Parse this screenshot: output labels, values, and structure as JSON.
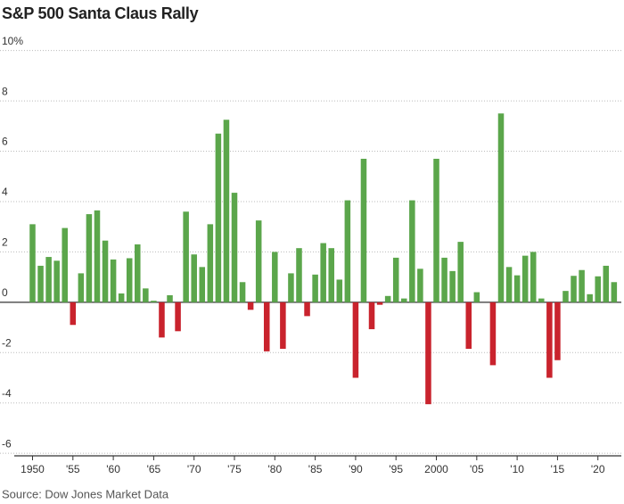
{
  "chart_data": {
    "type": "bar",
    "title": "S&P 500 Santa Claus Rally",
    "source": "Source: Dow Jones Market Data",
    "x": [
      1950,
      1951,
      1952,
      1953,
      1954,
      1955,
      1956,
      1957,
      1958,
      1959,
      1960,
      1961,
      1962,
      1963,
      1964,
      1965,
      1966,
      1967,
      1968,
      1969,
      1970,
      1971,
      1972,
      1973,
      1974,
      1975,
      1976,
      1977,
      1978,
      1979,
      1980,
      1981,
      1982,
      1983,
      1984,
      1985,
      1986,
      1987,
      1988,
      1989,
      1990,
      1991,
      1992,
      1993,
      1994,
      1995,
      1996,
      1997,
      1998,
      1999,
      2000,
      2001,
      2002,
      2003,
      2004,
      2005,
      2006,
      2007,
      2008,
      2009,
      2010,
      2011,
      2012,
      2013,
      2014,
      2015,
      2016,
      2017,
      2018,
      2019,
      2020,
      2021,
      2022
    ],
    "values": [
      3.1,
      1.45,
      1.8,
      1.65,
      2.95,
      -0.9,
      1.15,
      3.5,
      3.65,
      2.45,
      1.7,
      0.35,
      1.75,
      2.3,
      0.55,
      0.06,
      -1.4,
      0.28,
      -1.15,
      3.6,
      1.9,
      1.4,
      3.1,
      6.7,
      7.25,
      4.35,
      0.8,
      -0.3,
      3.25,
      -1.95,
      2.0,
      -1.85,
      1.15,
      2.15,
      -0.55,
      1.1,
      2.35,
      2.15,
      0.9,
      4.05,
      -3.0,
      5.7,
      -1.07,
      -0.1,
      0.25,
      1.77,
      0.15,
      4.05,
      1.33,
      -4.05,
      5.7,
      1.77,
      1.24,
      2.4,
      -1.85,
      0.4,
      0,
      -2.5,
      7.5,
      1.4,
      1.07,
      1.85,
      2.0,
      0.15,
      -3.0,
      -2.3,
      0.45,
      1.05,
      1.28,
      0.32,
      1.03,
      1.45,
      0.8
    ],
    "positive_color": "#5ba64b",
    "negative_color": "#c9232d",
    "xlim": [
      1948.4,
      2022.9
    ],
    "xticks": [
      1950,
      {
        "value": 1955,
        "label": "'55"
      },
      {
        "value": 1960,
        "label": "'60"
      },
      {
        "value": 1965,
        "label": "'65"
      },
      {
        "value": 1970,
        "label": "'70"
      },
      {
        "value": 1975,
        "label": "'75"
      },
      {
        "value": 1980,
        "label": "'80"
      },
      {
        "value": 1985,
        "label": "'85"
      },
      {
        "value": 1990,
        "label": "'90"
      },
      {
        "value": 1995,
        "label": "'95"
      },
      2000,
      {
        "value": 2005,
        "label": "'05"
      },
      {
        "value": 2010,
        "label": "'10"
      },
      {
        "value": 2015,
        "label": "'15"
      },
      {
        "value": 2020,
        "label": "'20"
      }
    ],
    "ylim": [
      -6.1,
      10.2
    ],
    "yticks": [
      {
        "value": 10,
        "label": "10%"
      },
      8,
      6,
      4,
      2,
      0,
      -2,
      -4,
      -6
    ],
    "grid": true
  }
}
